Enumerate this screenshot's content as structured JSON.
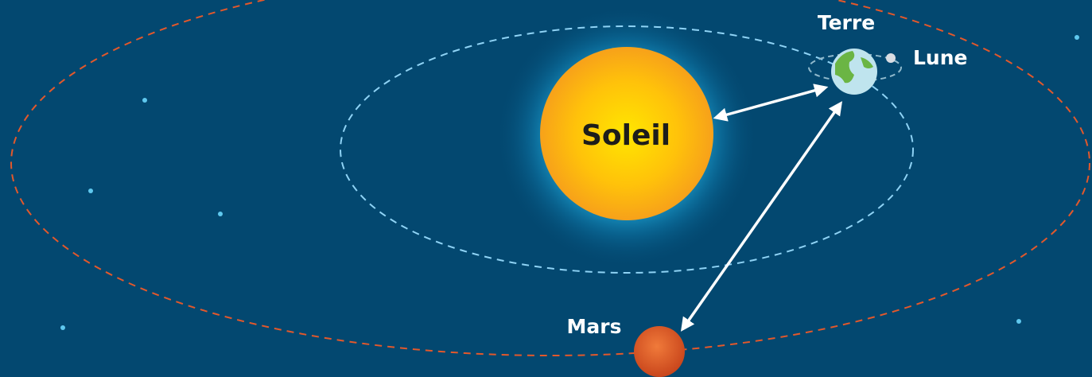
{
  "nodes": [
    {
      "label": "Soleil"
    },
    {
      "label": "Terre"
    },
    {
      "label": "Lune"
    },
    {
      "label": "Mars"
    }
  ]
}
